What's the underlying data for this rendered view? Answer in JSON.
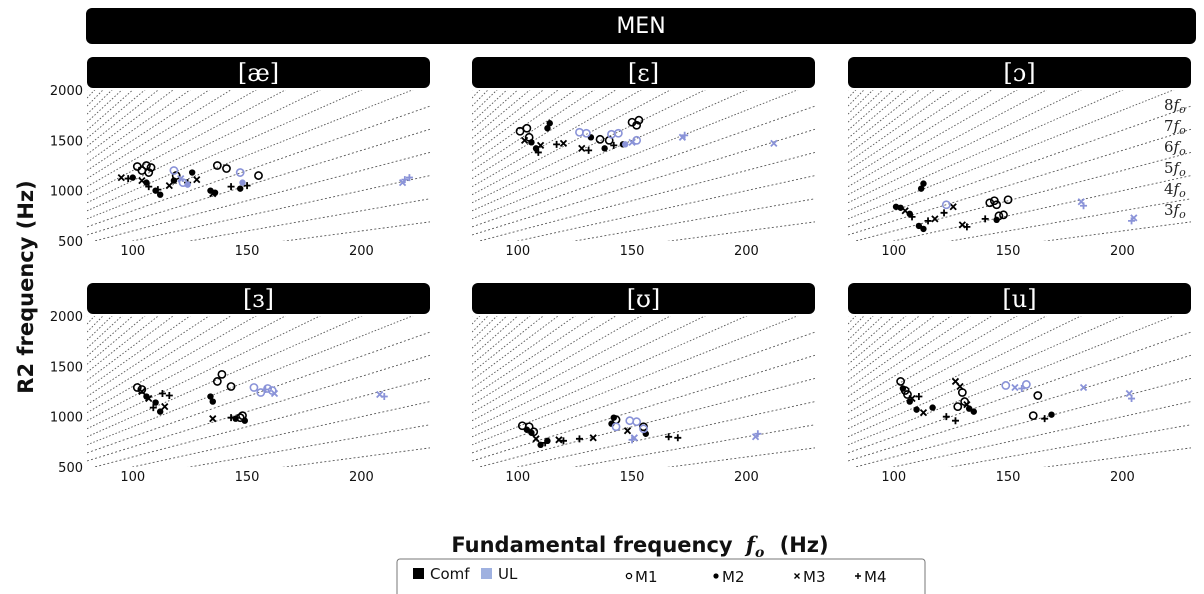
{
  "figure": {
    "banner": "MEN",
    "ylabel": "R2 frequency (Hz)",
    "xlabel": "Fundamental frequency",
    "xlabel_symbol": "f",
    "xlabel_subscript": "o",
    "xlabel_unit": "(Hz)"
  },
  "harmonic_labels": [
    "8fo",
    "7fo",
    "6fo",
    "5fo",
    "4fo",
    "3fo"
  ],
  "legend": {
    "groups": [
      {
        "label": "Comf",
        "color": "#000000"
      },
      {
        "label": "UL",
        "color": "#8a93d8"
      }
    ],
    "markers": [
      {
        "label": "M1",
        "marker": "o"
      },
      {
        "label": "M2",
        "marker": "•"
      },
      {
        "label": "M3",
        "marker": "x"
      },
      {
        "label": "M4",
        "marker": "+"
      }
    ]
  },
  "colors": {
    "comf": "#000000",
    "ul": "#8a93d8",
    "harmonic_line": "#9a9a9a"
  },
  "chart_data": [
    {
      "type": "scatter",
      "title": "[æ]",
      "xlim": [
        80,
        230
      ],
      "ylim": [
        500,
        2000
      ],
      "xticks": [
        100,
        150,
        200
      ],
      "yticks": [
        500,
        1000,
        1500,
        2000
      ],
      "series": [
        {
          "name": "Comf",
          "points": [
            [
              102,
              1240,
              "o"
            ],
            [
              104,
              1200,
              "o"
            ],
            [
              106,
              1250,
              "o"
            ],
            [
              108,
              1230,
              "o"
            ],
            [
              107,
              1180,
              "o"
            ],
            [
              119,
              1150,
              "o"
            ],
            [
              137,
              1250,
              "o"
            ],
            [
              141,
              1220,
              "o"
            ],
            [
              155,
              1150,
              "o"
            ],
            [
              100,
              1130,
              "•"
            ],
            [
              106,
              1080,
              "•"
            ],
            [
              110,
              1000,
              "•"
            ],
            [
              112,
              960,
              "•"
            ],
            [
              118,
              1100,
              "•"
            ],
            [
              126,
              1180,
              "•"
            ],
            [
              134,
              1000,
              "•"
            ],
            [
              136,
              980,
              "•"
            ],
            [
              147,
              1020,
              "•"
            ],
            [
              95,
              1130,
              "x"
            ],
            [
              104,
              1100,
              "x"
            ],
            [
              116,
              1050,
              "x"
            ],
            [
              128,
              1110,
              "x"
            ],
            [
              135,
              970,
              "x"
            ],
            [
              98,
              1120,
              "+"
            ],
            [
              107,
              1040,
              "+"
            ],
            [
              111,
              1010,
              "+"
            ],
            [
              124,
              1080,
              "+"
            ],
            [
              143,
              1040,
              "+"
            ],
            [
              150,
              1050,
              "+"
            ]
          ]
        },
        {
          "name": "UL",
          "points": [
            [
              118,
              1200,
              "o"
            ],
            [
              122,
              1080,
              "o"
            ],
            [
              147,
              1180,
              "o"
            ],
            [
              124,
              1060,
              "•"
            ],
            [
              148,
              1080,
              "•"
            ],
            [
              121,
              1120,
              "x"
            ],
            [
              218,
              1080,
              "x"
            ],
            [
              219,
              1110,
              "+"
            ],
            [
              221,
              1130,
              "+"
            ]
          ]
        }
      ]
    },
    {
      "type": "scatter",
      "title": "[ɛ]",
      "xlim": [
        80,
        230
      ],
      "ylim": [
        500,
        2000
      ],
      "xticks": [
        100,
        150,
        200
      ],
      "yticks": [],
      "series": [
        {
          "name": "Comf",
          "points": [
            [
              101,
              1590,
              "o"
            ],
            [
              104,
              1620,
              "o"
            ],
            [
              105,
              1530,
              "o"
            ],
            [
              136,
              1510,
              "o"
            ],
            [
              140,
              1500,
              "o"
            ],
            [
              150,
              1680,
              "o"
            ],
            [
              152,
              1650,
              "o"
            ],
            [
              153,
              1700,
              "o"
            ],
            [
              106,
              1480,
              "•"
            ],
            [
              108,
              1420,
              "•"
            ],
            [
              113,
              1620,
              "•"
            ],
            [
              114,
              1670,
              "•"
            ],
            [
              132,
              1530,
              "•"
            ],
            [
              146,
              1460,
              "•"
            ],
            [
              138,
              1420,
              "•"
            ],
            [
              103,
              1500,
              "x"
            ],
            [
              110,
              1450,
              "x"
            ],
            [
              120,
              1470,
              "x"
            ],
            [
              128,
              1420,
              "x"
            ],
            [
              109,
              1380,
              "+"
            ],
            [
              117,
              1460,
              "+"
            ],
            [
              131,
              1400,
              "+"
            ],
            [
              142,
              1450,
              "+"
            ]
          ]
        },
        {
          "name": "UL",
          "points": [
            [
              127,
              1580,
              "o"
            ],
            [
              130,
              1570,
              "o"
            ],
            [
              141,
              1560,
              "o"
            ],
            [
              144,
              1570,
              "o"
            ],
            [
              152,
              1500,
              "o"
            ],
            [
              147,
              1460,
              "•"
            ],
            [
              150,
              1480,
              "x"
            ],
            [
              172,
              1530,
              "x"
            ],
            [
              212,
              1470,
              "x"
            ],
            [
              173,
              1550,
              "+"
            ]
          ]
        }
      ]
    },
    {
      "type": "scatter",
      "title": "[ɔ]",
      "xlim": [
        80,
        230
      ],
      "ylim": [
        500,
        2000
      ],
      "xticks": [
        100,
        150,
        200
      ],
      "yticks": [],
      "series": [
        {
          "name": "Comf",
          "points": [
            [
              142,
              880,
              "o"
            ],
            [
              144,
              900,
              "o"
            ],
            [
              145,
              860,
              "o"
            ],
            [
              150,
              910,
              "o"
            ],
            [
              146,
              750,
              "o"
            ],
            [
              148,
              760,
              "o"
            ],
            [
              101,
              840,
              "•"
            ],
            [
              103,
              830,
              "•"
            ],
            [
              107,
              770,
              "•"
            ],
            [
              112,
              1020,
              "•"
            ],
            [
              113,
              1070,
              "•"
            ],
            [
              111,
              650,
              "•"
            ],
            [
              113,
              620,
              "•"
            ],
            [
              145,
              710,
              "•"
            ],
            [
              105,
              800,
              "x"
            ],
            [
              118,
              720,
              "x"
            ],
            [
              126,
              840,
              "x"
            ],
            [
              130,
              660,
              "x"
            ],
            [
              108,
              740,
              "+"
            ],
            [
              115,
              700,
              "+"
            ],
            [
              122,
              780,
              "+"
            ],
            [
              132,
              640,
              "+"
            ],
            [
              140,
              720,
              "+"
            ]
          ]
        },
        {
          "name": "UL",
          "points": [
            [
              123,
              860,
              "o"
            ],
            [
              182,
              890,
              "x"
            ],
            [
              205,
              730,
              "x"
            ],
            [
              183,
              850,
              "+"
            ],
            [
              204,
              700,
              "+"
            ]
          ]
        }
      ]
    },
    {
      "type": "scatter",
      "title": "[ɜ]",
      "xlim": [
        80,
        230
      ],
      "ylim": [
        500,
        2000
      ],
      "xticks": [
        100,
        150,
        200
      ],
      "yticks": [
        500,
        1000,
        1500,
        2000
      ],
      "series": [
        {
          "name": "Comf",
          "points": [
            [
              102,
              1290,
              "o"
            ],
            [
              104,
              1270,
              "o"
            ],
            [
              137,
              1350,
              "o"
            ],
            [
              139,
              1420,
              "o"
            ],
            [
              143,
              1300,
              "o"
            ],
            [
              147,
              990,
              "o"
            ],
            [
              148,
              1010,
              "o"
            ],
            [
              106,
              1200,
              "•"
            ],
            [
              110,
              1140,
              "•"
            ],
            [
              112,
              1050,
              "•"
            ],
            [
              134,
              1200,
              "•"
            ],
            [
              135,
              1150,
              "•"
            ],
            [
              145,
              980,
              "•"
            ],
            [
              149,
              960,
              "•"
            ],
            [
              104,
              1250,
              "x"
            ],
            [
              107,
              1180,
              "x"
            ],
            [
              114,
              1100,
              "x"
            ],
            [
              135,
              980,
              "x"
            ],
            [
              109,
              1090,
              "+"
            ],
            [
              113,
              1230,
              "+"
            ],
            [
              116,
              1210,
              "+"
            ],
            [
              143,
              990,
              "+"
            ]
          ]
        },
        {
          "name": "UL",
          "points": [
            [
              153,
              1290,
              "o"
            ],
            [
              156,
              1240,
              "o"
            ],
            [
              159,
              1280,
              "o"
            ],
            [
              161,
              1260,
              "o"
            ],
            [
              162,
              1230,
              "x"
            ],
            [
              208,
              1220,
              "x"
            ],
            [
              158,
              1270,
              "+"
            ],
            [
              210,
              1200,
              "+"
            ]
          ]
        }
      ]
    },
    {
      "type": "scatter",
      "title": "[ʊ]",
      "xlim": [
        80,
        230
      ],
      "ylim": [
        500,
        2000
      ],
      "xticks": [
        100,
        150,
        200
      ],
      "yticks": [],
      "series": [
        {
          "name": "Comf",
          "points": [
            [
              102,
              910,
              "o"
            ],
            [
              105,
              900,
              "o"
            ],
            [
              107,
              850,
              "o"
            ],
            [
              143,
              970,
              "o"
            ],
            [
              155,
              900,
              "o"
            ],
            [
              104,
              870,
              "•"
            ],
            [
              106,
              840,
              "•"
            ],
            [
              110,
              720,
              "•"
            ],
            [
              113,
              760,
              "•"
            ],
            [
              141,
              930,
              "•"
            ],
            [
              142,
              990,
              "•"
            ],
            [
              156,
              830,
              "•"
            ],
            [
              108,
              780,
              "x"
            ],
            [
              118,
              770,
              "x"
            ],
            [
              133,
              790,
              "x"
            ],
            [
              148,
              860,
              "x"
            ],
            [
              112,
              740,
              "+"
            ],
            [
              120,
              760,
              "+"
            ],
            [
              127,
              780,
              "+"
            ],
            [
              166,
              800,
              "+"
            ],
            [
              170,
              790,
              "+"
            ]
          ]
        },
        {
          "name": "UL",
          "points": [
            [
              143,
              900,
              "o"
            ],
            [
              149,
              960,
              "o"
            ],
            [
              152,
              950,
              "o"
            ],
            [
              155,
              880,
              "o"
            ],
            [
              151,
              790,
              "x"
            ],
            [
              204,
              800,
              "x"
            ],
            [
              150,
              770,
              "+"
            ],
            [
              205,
              830,
              "+"
            ]
          ]
        }
      ]
    },
    {
      "type": "scatter",
      "title": "[u]",
      "xlim": [
        80,
        230
      ],
      "ylim": [
        500,
        2000
      ],
      "xticks": [
        100,
        150,
        200
      ],
      "yticks": [],
      "series": [
        {
          "name": "Comf",
          "points": [
            [
              103,
              1350,
              "o"
            ],
            [
              105,
              1260,
              "o"
            ],
            [
              106,
              1220,
              "o"
            ],
            [
              130,
              1240,
              "o"
            ],
            [
              128,
              1100,
              "o"
            ],
            [
              131,
              1150,
              "o"
            ],
            [
              163,
              1210,
              "o"
            ],
            [
              161,
              1010,
              "o"
            ],
            [
              104,
              1280,
              "•"
            ],
            [
              107,
              1150,
              "•"
            ],
            [
              110,
              1070,
              "•"
            ],
            [
              117,
              1090,
              "•"
            ],
            [
              133,
              1080,
              "•"
            ],
            [
              135,
              1050,
              "•"
            ],
            [
              169,
              1020,
              "•"
            ],
            [
              108,
              1180,
              "x"
            ],
            [
              113,
              1040,
              "x"
            ],
            [
              127,
              1350,
              "x"
            ],
            [
              129,
              1300,
              "x"
            ],
            [
              132,
              1120,
              "x"
            ],
            [
              111,
              1200,
              "+"
            ],
            [
              123,
              1000,
              "+"
            ],
            [
              127,
              960,
              "+"
            ],
            [
              166,
              980,
              "+"
            ]
          ]
        },
        {
          "name": "UL",
          "points": [
            [
              149,
              1310,
              "o"
            ],
            [
              158,
              1320,
              "o"
            ],
            [
              153,
              1290,
              "x"
            ],
            [
              183,
              1290,
              "x"
            ],
            [
              203,
              1230,
              "x"
            ],
            [
              156,
              1280,
              "+"
            ],
            [
              204,
              1180,
              "+"
            ]
          ]
        }
      ]
    }
  ]
}
